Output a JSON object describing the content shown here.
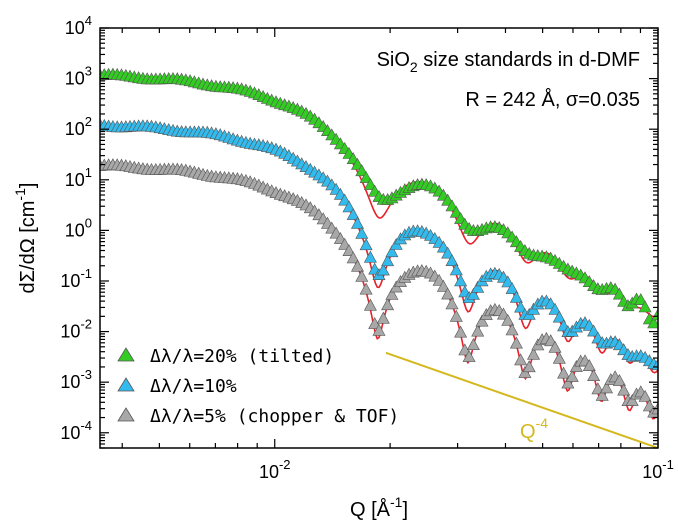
{
  "chart_data": {
    "type": "scatter",
    "x_scale": "log",
    "y_scale": "log",
    "xlim": [
      0.0035,
      0.1
    ],
    "ylim": [
      5e-05,
      10000
    ],
    "xlabel": {
      "base": "Q [Å",
      "sup": "-1",
      "tail": "]"
    },
    "ylabel": {
      "base": "dΣ/dΩ [cm",
      "sup": "-1",
      "tail": "]"
    },
    "x_ticks": [
      {
        "value": 0.01,
        "mantissa": "10",
        "exp": "-2"
      },
      {
        "value": 0.1,
        "mantissa": "10",
        "exp": "-1"
      }
    ],
    "y_ticks": [
      {
        "value": 0.0001,
        "mantissa": "10",
        "exp": "-4"
      },
      {
        "value": 0.001,
        "mantissa": "10",
        "exp": "-3"
      },
      {
        "value": 0.01,
        "mantissa": "10",
        "exp": "-2"
      },
      {
        "value": 0.1,
        "mantissa": "10",
        "exp": "-1"
      },
      {
        "value": 1,
        "mantissa": "10",
        "exp": "0"
      },
      {
        "value": 10,
        "mantissa": "10",
        "exp": "1"
      },
      {
        "value": 100,
        "mantissa": "10",
        "exp": "2"
      },
      {
        "value": 1000,
        "mantissa": "10",
        "exp": "3"
      },
      {
        "value": 10000,
        "mantissa": "10",
        "exp": "4"
      }
    ],
    "annotations": {
      "line1": {
        "prefix": "SiO",
        "sub": "2",
        "suffix": " size standards in d-DMF"
      },
      "line2": "R = 242 Å, σ=0.035"
    },
    "model": {
      "R_angstrom": 242,
      "sigma": 0.035,
      "fit_color": "#e8202a"
    },
    "reference_line": {
      "label_base": "Q",
      "label_sup": "-4",
      "color": "#d4b81e",
      "x": [
        0.0195,
        0.1
      ],
      "y": [
        0.0038,
        5e-05
      ]
    },
    "series": [
      {
        "name": "Δλ/λ=20% (tilted)",
        "color": "#33cc22",
        "scale": 1350,
        "resolution": 0.2,
        "x_range": [
          0.0035,
          0.1
        ]
      },
      {
        "name": "Δλ/λ=10%",
        "color": "#33bbee",
        "scale": 140,
        "resolution": 0.1,
        "x_range": [
          0.0035,
          0.1
        ]
      },
      {
        "name": "Δλ/λ=5% (chopper & TOF)",
        "color": "#a8a8a8",
        "scale": 22,
        "resolution": 0.05,
        "x_range": [
          0.0035,
          0.1
        ]
      }
    ]
  }
}
